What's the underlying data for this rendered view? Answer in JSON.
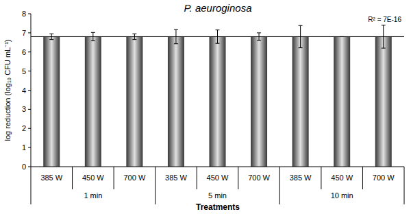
{
  "chart_data": {
    "type": "bar",
    "title": "P. aeuroginosa",
    "x_label": "Treatments",
    "y_label": "log reduction (log₁₀ CFU mL⁻¹)",
    "categories": [
      "385 W",
      "450 W",
      "700 W",
      "385 W",
      "450 W",
      "700 W",
      "385 W",
      "450 W",
      "700 W"
    ],
    "groups": [
      "1 min",
      "5 min",
      "10 min"
    ],
    "values": [
      6.8,
      6.8,
      6.8,
      6.8,
      6.8,
      6.8,
      6.8,
      6.8,
      6.8
    ],
    "errors": [
      0.15,
      0.22,
      0.15,
      0.37,
      0.35,
      0.2,
      0.58,
      0,
      0.6
    ],
    "trendline": {
      "value": 6.8,
      "annotation": "R² = 7E-16"
    },
    "color": "#9a9a9a",
    "ylim": [
      0,
      8
    ],
    "yticks": [
      0,
      1,
      2,
      3,
      4,
      5,
      6,
      7,
      8
    ],
    "grid": false
  }
}
